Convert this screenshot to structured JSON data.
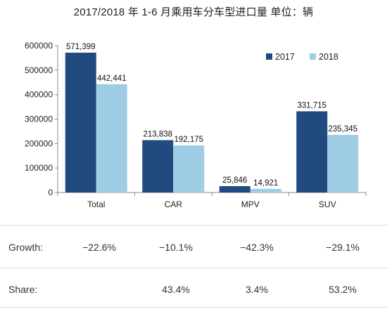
{
  "title": "2017/2018 年 1-6 月乘用车分车型进口量    单位：辆",
  "colors": {
    "2017": "#214a80",
    "2018": "#9fcde5"
  },
  "chart_data": {
    "type": "bar",
    "categories": [
      "Total",
      "CAR",
      "MPV",
      "SUV"
    ],
    "series": [
      {
        "name": "2017",
        "values": [
          571399,
          213838,
          25846,
          331715
        ],
        "labels": [
          "571,399",
          "213,838",
          "25,846",
          "331,715"
        ]
      },
      {
        "name": "2018",
        "values": [
          442441,
          192175,
          14921,
          235345
        ],
        "labels": [
          "442,441",
          "192,175",
          "14,921",
          "235,345"
        ]
      }
    ],
    "ylim": [
      0,
      600000
    ],
    "yticks": [
      "0",
      "100000",
      "200000",
      "300000",
      "400000",
      "500000",
      "600000"
    ],
    "legend": "top-right",
    "grid": false
  },
  "growth": {
    "label": "Growth:",
    "values": [
      "−22.6%",
      "−10.1%",
      "−42.3%",
      "−29.1%"
    ]
  },
  "share": {
    "label": "Share:",
    "values": [
      "",
      "43.4%",
      "3.4%",
      "53.2%"
    ]
  }
}
